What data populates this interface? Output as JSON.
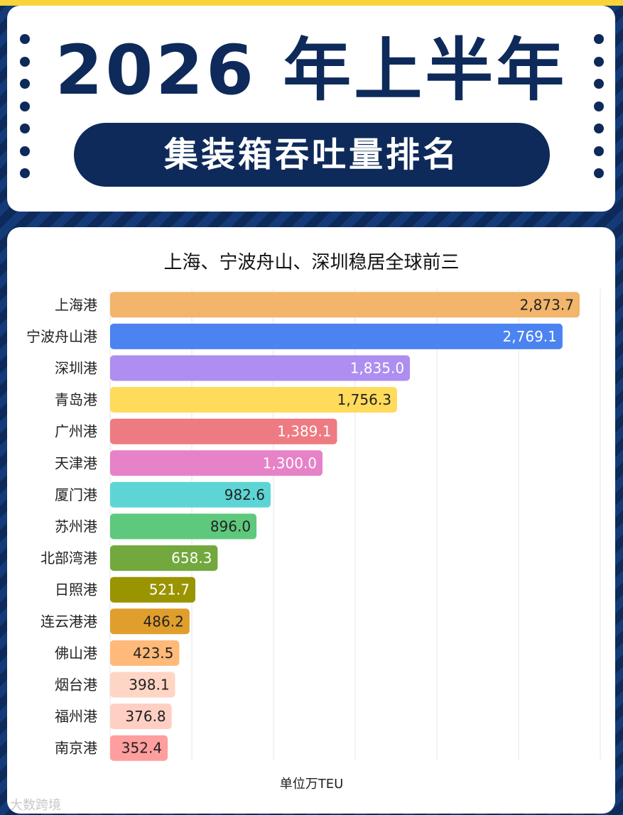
{
  "header": {
    "title": "2026 年上半年",
    "subtitle": "集装箱吞吐量排名"
  },
  "chart_title": "上海、宁波舟山、深圳稳居全球前三",
  "unit_label": "单位万TEU",
  "watermark": "大数跨境",
  "colors": {
    "navy": "#0e2a5a",
    "accent_yellow": "#f8d33a"
  },
  "chart_data": {
    "type": "bar",
    "orientation": "horizontal",
    "title": "上海、宁波舟山、深圳稳居全球前三",
    "xlabel": "单位万TEU",
    "ylabel": "",
    "xlim": [
      0,
      3000
    ],
    "grid": true,
    "categories": [
      "上海港",
      "宁波舟山港",
      "深圳港",
      "青岛港",
      "广州港",
      "天津港",
      "厦门港",
      "苏州港",
      "北部湾港",
      "日照港",
      "连云港港",
      "佛山港",
      "烟台港",
      "福州港",
      "南京港"
    ],
    "values": [
      2873.7,
      2769.1,
      1835.0,
      1756.3,
      1389.1,
      1300.0,
      982.6,
      896.0,
      658.3,
      521.7,
      486.2,
      423.5,
      398.1,
      376.8,
      352.4
    ],
    "value_labels": [
      "2,873.7",
      "2,769.1",
      "1,835.0",
      "1,756.3",
      "1,389.1",
      "1,300.0",
      "982.6",
      "896.0",
      "658.3",
      "521.7",
      "486.2",
      "423.5",
      "398.1",
      "376.8",
      "352.4"
    ],
    "bar_colors": [
      "#f2b56b",
      "#4b83f0",
      "#ae8ef0",
      "#ffdb5c",
      "#ee7a82",
      "#e682c8",
      "#5ed5d5",
      "#5ec97c",
      "#72a83e",
      "#999400",
      "#e09e2c",
      "#ffb978",
      "#ffd5c5",
      "#ffcfc4",
      "#ff9e9e"
    ],
    "label_colors": [
      "#222222",
      "#ffffff",
      "#ffffff",
      "#222222",
      "#ffffff",
      "#ffffff",
      "#222222",
      "#222222",
      "#ffffff",
      "#ffffff",
      "#222222",
      "#222222",
      "#222222",
      "#222222",
      "#222222"
    ]
  }
}
